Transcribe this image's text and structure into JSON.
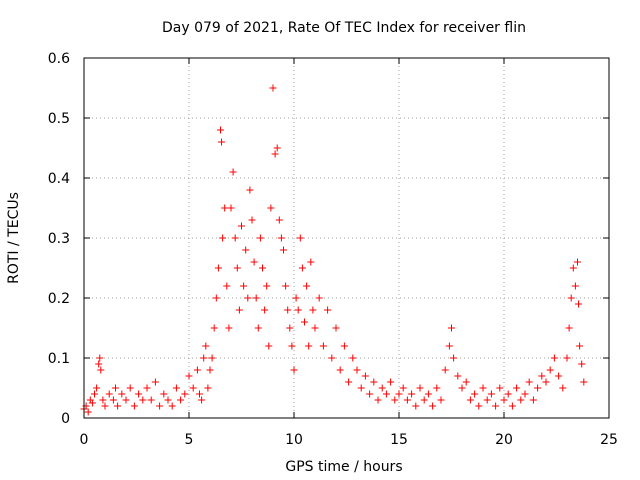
{
  "chart_data": {
    "type": "scatter",
    "title": "Day 079 of 2021, Rate Of TEC Index for receiver flin",
    "xlabel": "GPS time / hours",
    "ylabel": "ROTI / TECUs",
    "xlim": [
      0,
      25
    ],
    "ylim": [
      0,
      0.6
    ],
    "xticks": [
      "0",
      "5",
      "10",
      "15",
      "20",
      "25"
    ],
    "yticks": [
      "0",
      "0.1",
      "0.2",
      "0.3",
      "0.4",
      "0.5",
      "0.6"
    ],
    "grid": true,
    "marker": "+",
    "color": "#ff0000",
    "series": [
      {
        "points": [
          [
            0.0,
            0.015
          ],
          [
            0.1,
            0.02
          ],
          [
            0.2,
            0.01
          ],
          [
            0.3,
            0.03
          ],
          [
            0.4,
            0.025
          ],
          [
            0.5,
            0.04
          ],
          [
            0.6,
            0.05
          ],
          [
            0.7,
            0.09
          ],
          [
            0.75,
            0.1
          ],
          [
            0.8,
            0.08
          ],
          [
            0.9,
            0.03
          ],
          [
            1.0,
            0.02
          ],
          [
            1.2,
            0.04
          ],
          [
            1.4,
            0.03
          ],
          [
            1.5,
            0.05
          ],
          [
            1.6,
            0.02
          ],
          [
            1.8,
            0.04
          ],
          [
            2.0,
            0.03
          ],
          [
            2.2,
            0.05
          ],
          [
            2.4,
            0.02
          ],
          [
            2.6,
            0.04
          ],
          [
            2.8,
            0.03
          ],
          [
            3.0,
            0.05
          ],
          [
            3.2,
            0.03
          ],
          [
            3.4,
            0.06
          ],
          [
            3.6,
            0.02
          ],
          [
            3.8,
            0.04
          ],
          [
            4.0,
            0.03
          ],
          [
            4.2,
            0.02
          ],
          [
            4.4,
            0.05
          ],
          [
            4.6,
            0.03
          ],
          [
            4.8,
            0.04
          ],
          [
            5.0,
            0.07
          ],
          [
            5.2,
            0.05
          ],
          [
            5.4,
            0.08
          ],
          [
            5.5,
            0.04
          ],
          [
            5.6,
            0.03
          ],
          [
            5.7,
            0.1
          ],
          [
            5.8,
            0.12
          ],
          [
            5.9,
            0.05
          ],
          [
            6.0,
            0.08
          ],
          [
            6.1,
            0.1
          ],
          [
            6.2,
            0.15
          ],
          [
            6.3,
            0.2
          ],
          [
            6.4,
            0.25
          ],
          [
            6.5,
            0.48
          ],
          [
            6.55,
            0.46
          ],
          [
            6.6,
            0.3
          ],
          [
            6.7,
            0.35
          ],
          [
            6.8,
            0.22
          ],
          [
            6.9,
            0.15
          ],
          [
            7.0,
            0.35
          ],
          [
            7.1,
            0.41
          ],
          [
            7.2,
            0.3
          ],
          [
            7.3,
            0.25
          ],
          [
            7.4,
            0.18
          ],
          [
            7.5,
            0.32
          ],
          [
            7.6,
            0.22
          ],
          [
            7.7,
            0.28
          ],
          [
            7.8,
            0.2
          ],
          [
            7.9,
            0.38
          ],
          [
            8.0,
            0.33
          ],
          [
            8.1,
            0.26
          ],
          [
            8.2,
            0.2
          ],
          [
            8.3,
            0.15
          ],
          [
            8.4,
            0.3
          ],
          [
            8.5,
            0.25
          ],
          [
            8.6,
            0.18
          ],
          [
            8.7,
            0.22
          ],
          [
            8.8,
            0.12
          ],
          [
            8.9,
            0.35
          ],
          [
            9.0,
            0.55
          ],
          [
            9.1,
            0.44
          ],
          [
            9.2,
            0.45
          ],
          [
            9.3,
            0.33
          ],
          [
            9.4,
            0.3
          ],
          [
            9.5,
            0.28
          ],
          [
            9.6,
            0.22
          ],
          [
            9.7,
            0.18
          ],
          [
            9.8,
            0.15
          ],
          [
            9.9,
            0.12
          ],
          [
            10.0,
            0.08
          ],
          [
            10.1,
            0.2
          ],
          [
            10.2,
            0.18
          ],
          [
            10.3,
            0.3
          ],
          [
            10.4,
            0.25
          ],
          [
            10.5,
            0.16
          ],
          [
            10.6,
            0.22
          ],
          [
            10.7,
            0.12
          ],
          [
            10.8,
            0.26
          ],
          [
            10.9,
            0.18
          ],
          [
            11.0,
            0.15
          ],
          [
            11.2,
            0.2
          ],
          [
            11.4,
            0.12
          ],
          [
            11.6,
            0.18
          ],
          [
            11.8,
            0.1
          ],
          [
            12.0,
            0.15
          ],
          [
            12.2,
            0.08
          ],
          [
            12.4,
            0.12
          ],
          [
            12.6,
            0.06
          ],
          [
            12.8,
            0.1
          ],
          [
            13.0,
            0.08
          ],
          [
            13.2,
            0.05
          ],
          [
            13.4,
            0.07
          ],
          [
            13.6,
            0.04
          ],
          [
            13.8,
            0.06
          ],
          [
            14.0,
            0.03
          ],
          [
            14.2,
            0.05
          ],
          [
            14.4,
            0.04
          ],
          [
            14.6,
            0.06
          ],
          [
            14.8,
            0.03
          ],
          [
            15.0,
            0.04
          ],
          [
            15.2,
            0.05
          ],
          [
            15.4,
            0.03
          ],
          [
            15.6,
            0.04
          ],
          [
            15.8,
            0.02
          ],
          [
            16.0,
            0.05
          ],
          [
            16.2,
            0.03
          ],
          [
            16.4,
            0.04
          ],
          [
            16.6,
            0.02
          ],
          [
            16.8,
            0.05
          ],
          [
            17.0,
            0.03
          ],
          [
            17.2,
            0.08
          ],
          [
            17.4,
            0.12
          ],
          [
            17.5,
            0.15
          ],
          [
            17.6,
            0.1
          ],
          [
            17.8,
            0.07
          ],
          [
            18.0,
            0.05
          ],
          [
            18.2,
            0.06
          ],
          [
            18.4,
            0.03
          ],
          [
            18.6,
            0.04
          ],
          [
            18.8,
            0.02
          ],
          [
            19.0,
            0.05
          ],
          [
            19.2,
            0.03
          ],
          [
            19.4,
            0.04
          ],
          [
            19.6,
            0.02
          ],
          [
            19.8,
            0.05
          ],
          [
            20.0,
            0.03
          ],
          [
            20.2,
            0.04
          ],
          [
            20.4,
            0.02
          ],
          [
            20.6,
            0.05
          ],
          [
            20.8,
            0.03
          ],
          [
            21.0,
            0.04
          ],
          [
            21.2,
            0.06
          ],
          [
            21.4,
            0.03
          ],
          [
            21.6,
            0.05
          ],
          [
            21.8,
            0.07
          ],
          [
            22.0,
            0.06
          ],
          [
            22.2,
            0.08
          ],
          [
            22.4,
            0.1
          ],
          [
            22.6,
            0.07
          ],
          [
            22.8,
            0.05
          ],
          [
            23.0,
            0.1
          ],
          [
            23.1,
            0.15
          ],
          [
            23.2,
            0.2
          ],
          [
            23.3,
            0.25
          ],
          [
            23.4,
            0.22
          ],
          [
            23.5,
            0.26
          ],
          [
            23.55,
            0.19
          ],
          [
            23.6,
            0.12
          ],
          [
            23.7,
            0.09
          ],
          [
            23.8,
            0.06
          ]
        ]
      }
    ]
  }
}
